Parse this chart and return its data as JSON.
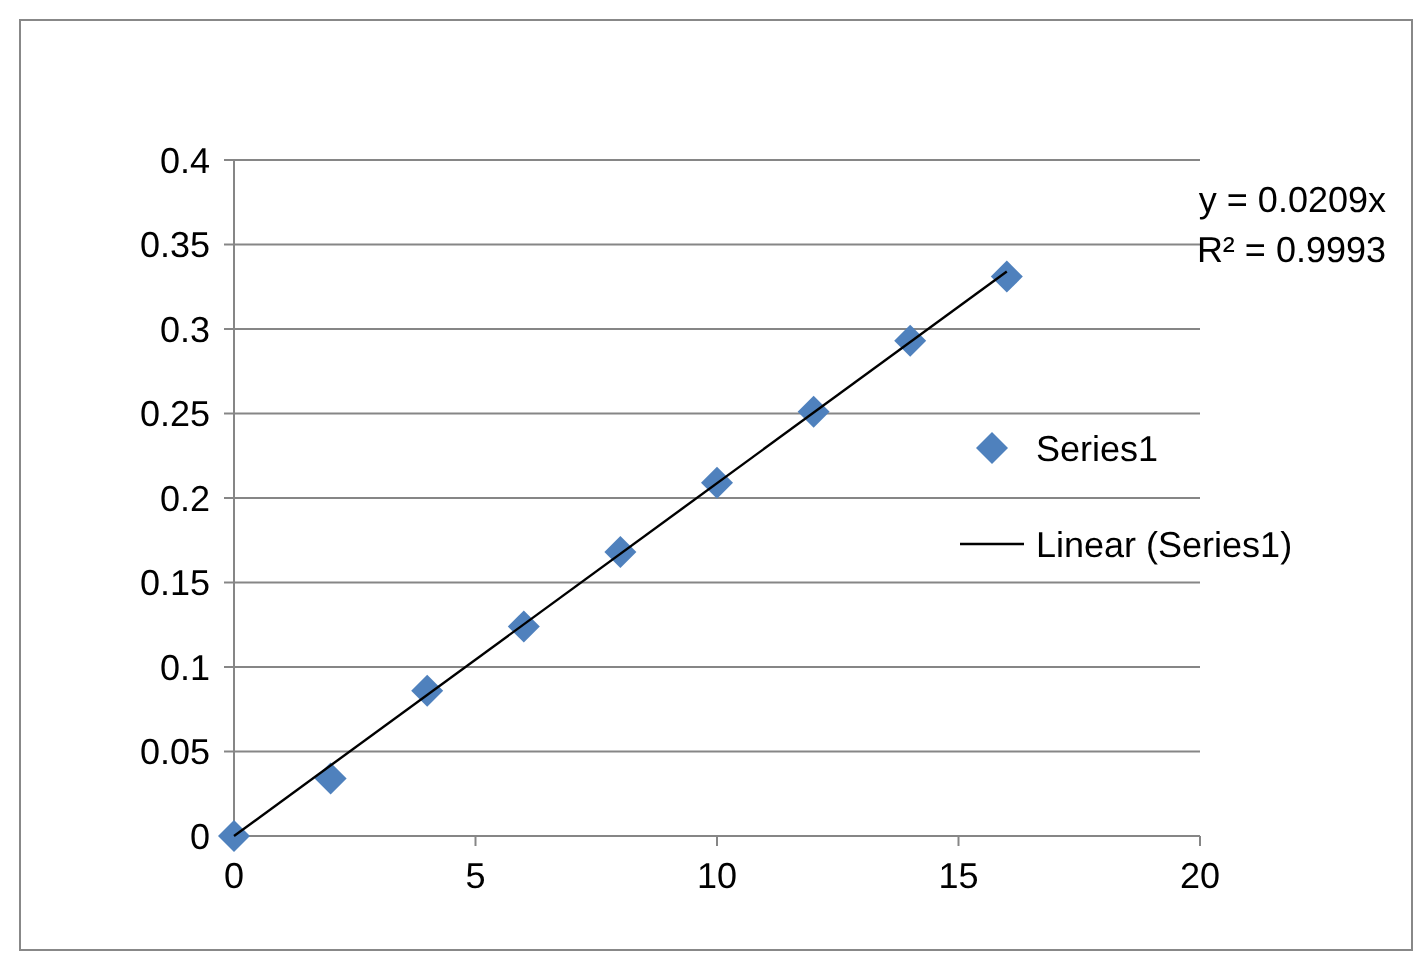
{
  "chart_data": {
    "type": "scatter",
    "x": [
      0,
      2,
      4,
      6,
      8,
      10,
      12,
      14,
      16
    ],
    "series": [
      {
        "name": "Series1",
        "color": "#4f81bd",
        "marker": "diamond",
        "values": [
          0,
          0.034,
          0.086,
          0.124,
          0.168,
          0.209,
          0.251,
          0.293,
          0.331
        ]
      },
      {
        "name": "Linear (Series1)",
        "type": "line",
        "color": "#000000",
        "marker": "none",
        "x": [
          0,
          16
        ],
        "values": [
          0,
          0.334
        ]
      }
    ],
    "xlim": [
      0,
      20
    ],
    "xticks": [
      0,
      5,
      10,
      15,
      20
    ],
    "ylim": [
      0,
      0.4
    ],
    "yticks": [
      0,
      0.05,
      0.1,
      0.15,
      0.2,
      0.25,
      0.3,
      0.35,
      0.4
    ],
    "grid": "y",
    "legend": "right",
    "annotations": [
      "y = 0.0209x",
      "R² = 0.9993"
    ]
  }
}
